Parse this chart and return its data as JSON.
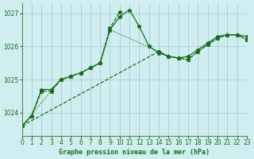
{
  "title": "Graphe pression niveau de la mer (hPa)",
  "bg_color": "#d0eef0",
  "line_color": "#1a6b1a",
  "grid_color": "#a0c8d0",
  "xlim": [
    0,
    23
  ],
  "ylim": [
    1023.3,
    1027.3
  ],
  "yticks": [
    1024,
    1025,
    1026,
    1027
  ],
  "xticks": [
    0,
    1,
    2,
    3,
    4,
    5,
    6,
    7,
    8,
    9,
    10,
    11,
    12,
    13,
    14,
    15,
    16,
    17,
    18,
    19,
    20,
    21,
    22,
    23
  ],
  "series1": [
    1023.6,
    1023.9,
    1024.7,
    1024.7,
    1025.0,
    1025.1,
    1025.2,
    1025.35,
    1025.5,
    1026.5,
    1026.9,
    1027.1,
    1026.6,
    1026.0,
    1025.8,
    1025.7,
    1025.65,
    1025.7,
    1025.9,
    1026.1,
    1026.3,
    1026.35,
    1026.35,
    1026.3
  ],
  "series2": [
    1023.6,
    1023.9,
    1024.65,
    1024.65,
    1025.0,
    1025.1,
    1025.2,
    1025.35,
    1025.5,
    1026.55,
    1027.05,
    null,
    null,
    null,
    null,
    null,
    null,
    null,
    null,
    null,
    null,
    null,
    null,
    null
  ],
  "series3_x": [
    0,
    14,
    15,
    16,
    17,
    18,
    19,
    20,
    21,
    22,
    23
  ],
  "series3_y": [
    1023.6,
    1025.85,
    1025.7,
    1025.65,
    1025.6,
    1025.85,
    1026.05,
    1026.25,
    1026.35,
    1026.35,
    1026.2
  ],
  "series4_x": [
    0,
    3,
    4,
    5,
    6,
    7,
    8,
    9,
    14,
    15,
    16,
    17,
    18,
    19,
    20,
    21,
    22,
    23
  ],
  "series4_y": [
    1023.6,
    1024.65,
    1025.0,
    1025.1,
    1025.2,
    1025.35,
    1025.5,
    1026.5,
    1025.85,
    1025.7,
    1025.65,
    1025.6,
    1025.85,
    1026.05,
    1026.25,
    1026.35,
    1026.35,
    1026.2
  ]
}
